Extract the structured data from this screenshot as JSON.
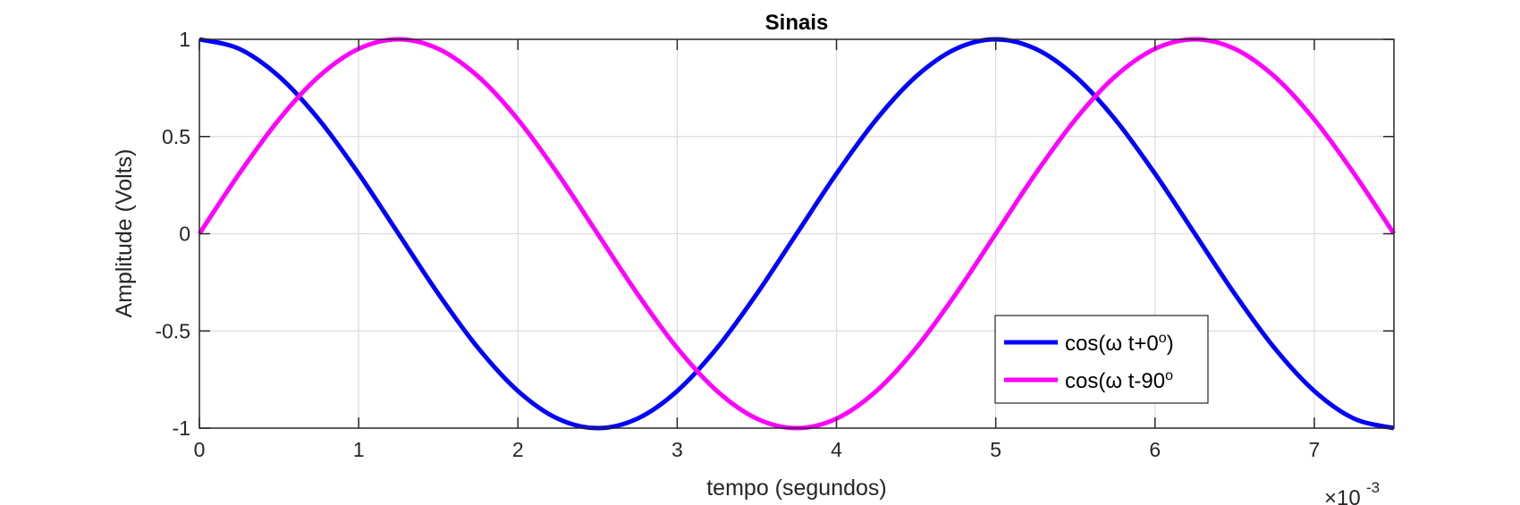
{
  "chart_data": {
    "type": "line",
    "title": "Sinais",
    "xlabel": "tempo (segundos)",
    "ylabel": "Amplitude (Volts)",
    "x_multiplier_label": "×10",
    "x_multiplier_exponent": "-3",
    "xlim": [
      0,
      0.0075
    ],
    "ylim": [
      -1,
      1
    ],
    "x_ticks": [
      0,
      0.001,
      0.002,
      0.003,
      0.004,
      0.005,
      0.006,
      0.007
    ],
    "x_tick_labels": [
      "0",
      "1",
      "2",
      "3",
      "4",
      "5",
      "6",
      "7"
    ],
    "y_ticks": [
      -1,
      -0.5,
      0,
      0.5,
      1
    ],
    "y_tick_labels": [
      "-1",
      "-0.5",
      "0",
      "0.5",
      "1"
    ],
    "grid": true,
    "legend_position": "bottom-right",
    "x": [
      0,
      0.00025,
      0.0005,
      0.00075,
      0.001,
      0.00125,
      0.0015,
      0.00175,
      0.002,
      0.00225,
      0.0025,
      0.00275,
      0.003,
      0.00325,
      0.0035,
      0.00375,
      0.004,
      0.00425,
      0.0045,
      0.00475,
      0.005,
      0.00525,
      0.0055,
      0.00575,
      0.006,
      0.00625,
      0.0065,
      0.00675,
      0.007,
      0.00725,
      0.0075
    ],
    "series": [
      {
        "name": "cos(ω t+0",
        "name_sup": "o",
        "name_suffix": ")",
        "color": "#0000ff",
        "values": [
          1,
          0.9511,
          0.809,
          0.5878,
          0.309,
          0,
          -0.309,
          -0.5878,
          -0.809,
          -0.9511,
          -1,
          -0.9511,
          -0.809,
          -0.5878,
          -0.309,
          0,
          0.309,
          0.5878,
          0.809,
          0.9511,
          1,
          0.9511,
          0.809,
          0.5878,
          0.309,
          0,
          -0.309,
          -0.5878,
          -0.809,
          -0.9511,
          -1
        ]
      },
      {
        "name": "cos(ω t-90",
        "name_sup": "o",
        "name_suffix": "",
        "color": "#ff00ff",
        "values": [
          0,
          0.309,
          0.5878,
          0.809,
          0.9511,
          1,
          0.9511,
          0.809,
          0.5878,
          0.309,
          0,
          -0.309,
          -0.5878,
          -0.809,
          -0.9511,
          -1,
          -0.9511,
          -0.809,
          -0.5878,
          -0.309,
          0,
          0.309,
          0.5878,
          0.809,
          0.9511,
          1,
          0.9511,
          0.809,
          0.5878,
          0.309,
          0
        ]
      }
    ]
  }
}
